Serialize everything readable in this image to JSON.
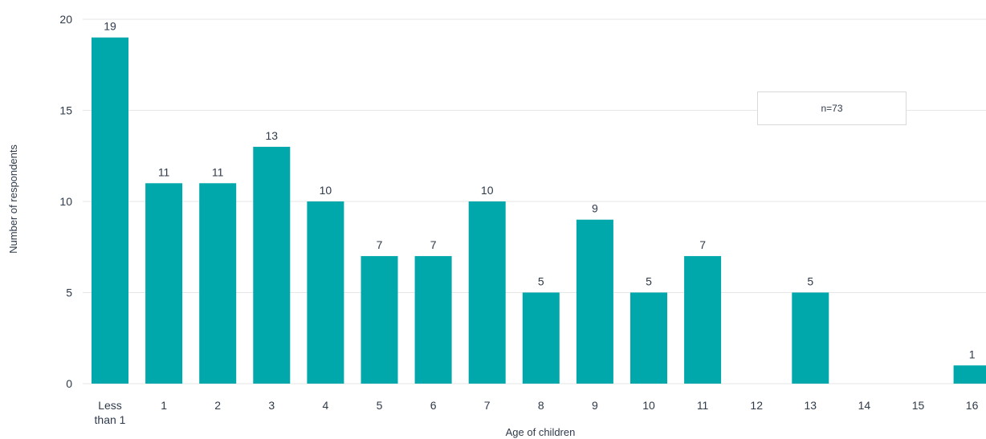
{
  "chart_data": {
    "type": "bar",
    "categories": [
      "Less than 1",
      "1",
      "2",
      "3",
      "4",
      "5",
      "6",
      "7",
      "8",
      "9",
      "10",
      "11",
      "12",
      "13",
      "14",
      "15",
      "16"
    ],
    "values": [
      19,
      11,
      11,
      13,
      10,
      7,
      7,
      10,
      5,
      9,
      5,
      7,
      0,
      5,
      0,
      0,
      1
    ],
    "data_labels": [
      "19",
      "11",
      "11",
      "13",
      "10",
      "7",
      "7",
      "10",
      "5",
      "9",
      "5",
      "7",
      "",
      "5",
      "",
      "",
      "1"
    ],
    "xlabel": "Age of children",
    "ylabel": "Number of respondents",
    "ylim": [
      0,
      20
    ],
    "yticks": [
      0,
      5,
      10,
      15,
      20
    ],
    "grid": true,
    "bar_color": "#00a8ab",
    "grid_color": "#e6e6e6",
    "note": "n=73"
  }
}
